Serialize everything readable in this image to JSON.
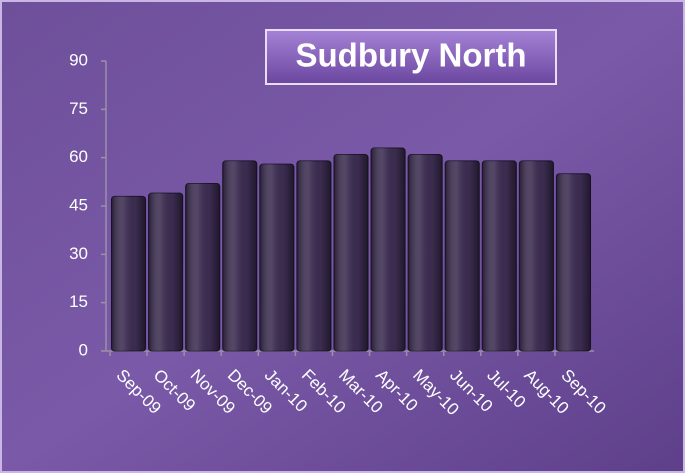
{
  "chart_data": {
    "type": "bar",
    "title": "Sudbury North",
    "categories": [
      "Sep-09",
      "Oct-09",
      "Nov-09",
      "Dec-09",
      "Jan-10",
      "Feb-10",
      "Mar-10",
      "Apr-10",
      "May-10",
      "Jun-10",
      "Jul-10",
      "Aug-10",
      "Sep-10"
    ],
    "values": [
      48,
      49,
      52,
      59,
      58,
      59,
      61,
      63,
      61,
      59,
      59,
      59,
      55
    ],
    "color": "#3b2c50",
    "ylim": [
      0,
      90
    ],
    "yticks": [
      0,
      15,
      30,
      45,
      60,
      75,
      90
    ],
    "grid": false
  }
}
